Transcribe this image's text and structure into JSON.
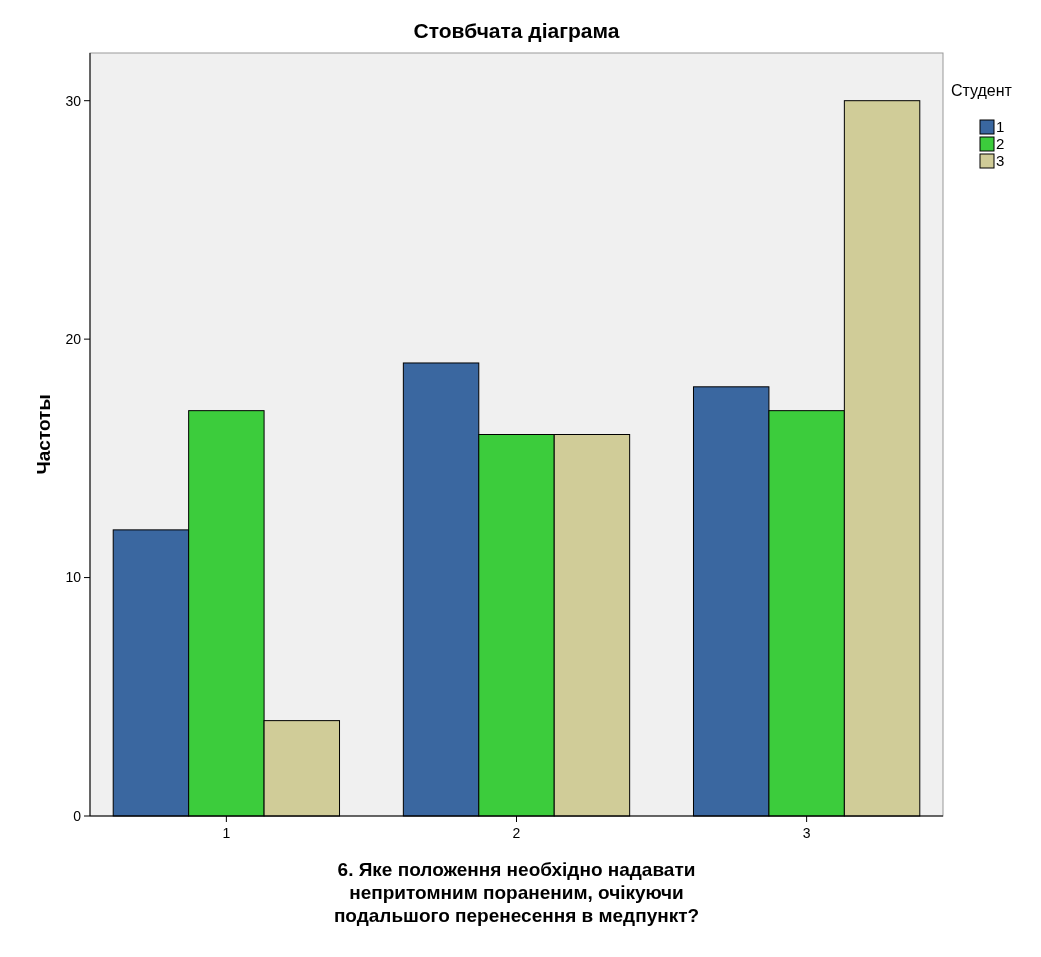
{
  "chart_data": {
    "type": "bar",
    "title": "Стовбчата діаграма",
    "xlabel": "6. Яке положення необхідно надавати непритомним пораненим, очікуючи подальшого перенесення в медпункт?",
    "ylabel": "Частоты",
    "legend_title": "Студент",
    "legend": "top right",
    "categories": [
      "1",
      "2",
      "3"
    ],
    "series": [
      {
        "name": "1",
        "color": "#3a67a0",
        "values": [
          12,
          19,
          18
        ]
      },
      {
        "name": "2",
        "color": "#3ccc3c",
        "values": [
          17,
          16,
          17
        ]
      },
      {
        "name": "3",
        "color": "#d0cc98",
        "values": [
          4,
          16,
          30
        ]
      }
    ],
    "ylim": [
      0,
      32
    ],
    "yticks": [
      0,
      10,
      20,
      30
    ],
    "grid": false
  }
}
